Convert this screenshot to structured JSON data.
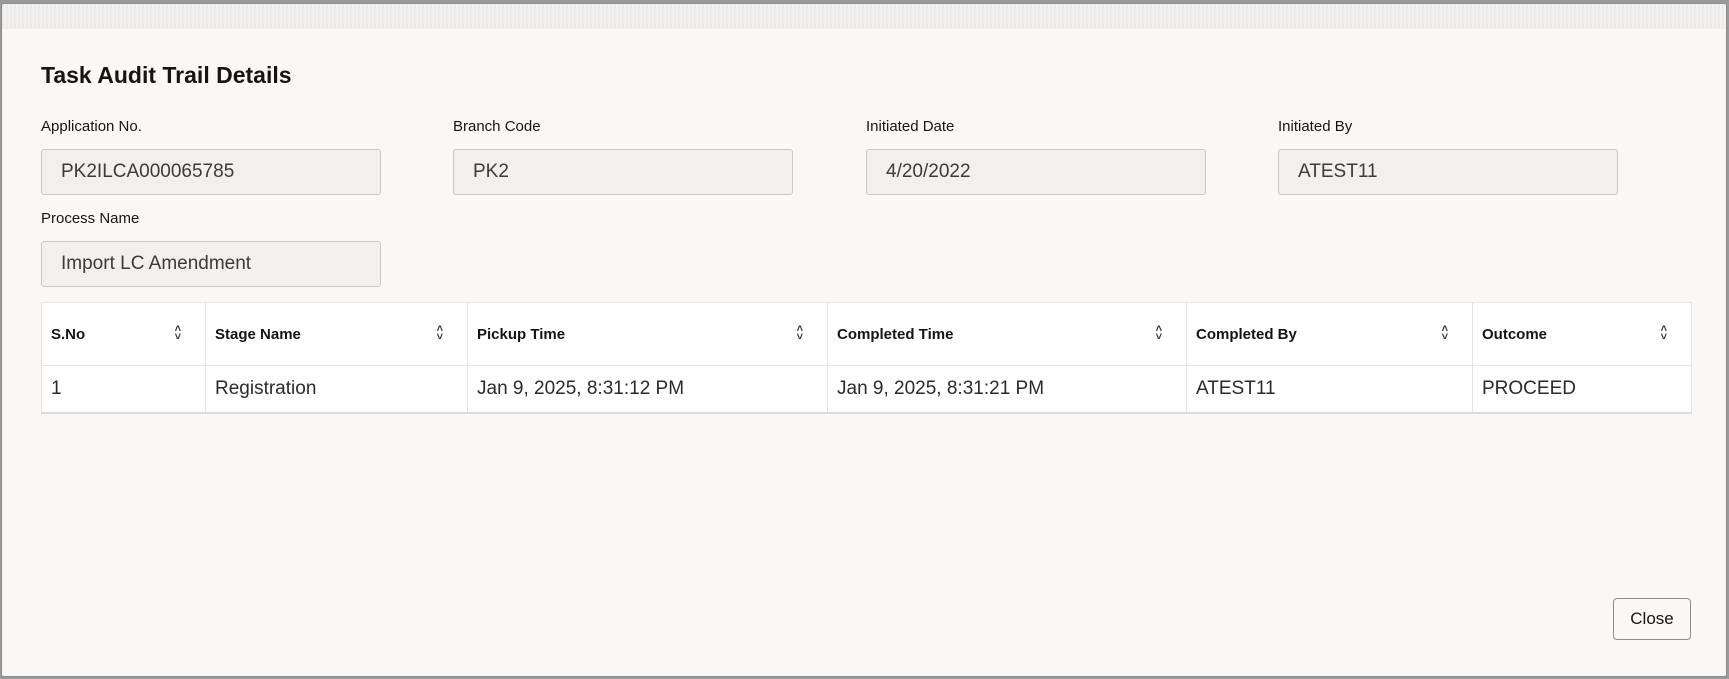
{
  "dialog": {
    "title": "Task Audit Trail Details",
    "fields": [
      {
        "label": "Application No.",
        "value": "PK2ILCA000065785"
      },
      {
        "label": "Branch Code",
        "value": "PK2"
      },
      {
        "label": "Initiated Date",
        "value": "4/20/2022"
      },
      {
        "label": "Initiated By",
        "value": "ATEST11"
      },
      {
        "label": "Process Name",
        "value": "Import LC Amendment"
      }
    ],
    "table": {
      "columns": [
        "S.No",
        "Stage Name",
        "Pickup Time",
        "Completed Time",
        "Completed By",
        "Outcome"
      ],
      "rows": [
        [
          "1",
          "Registration",
          "Jan 9, 2025, 8:31:12 PM",
          "Jan 9, 2025, 8:31:21 PM",
          "ATEST11",
          "PROCEED"
        ]
      ]
    },
    "close_label": "Close"
  },
  "icons": {
    "sort": "sort-up-down-icon"
  }
}
